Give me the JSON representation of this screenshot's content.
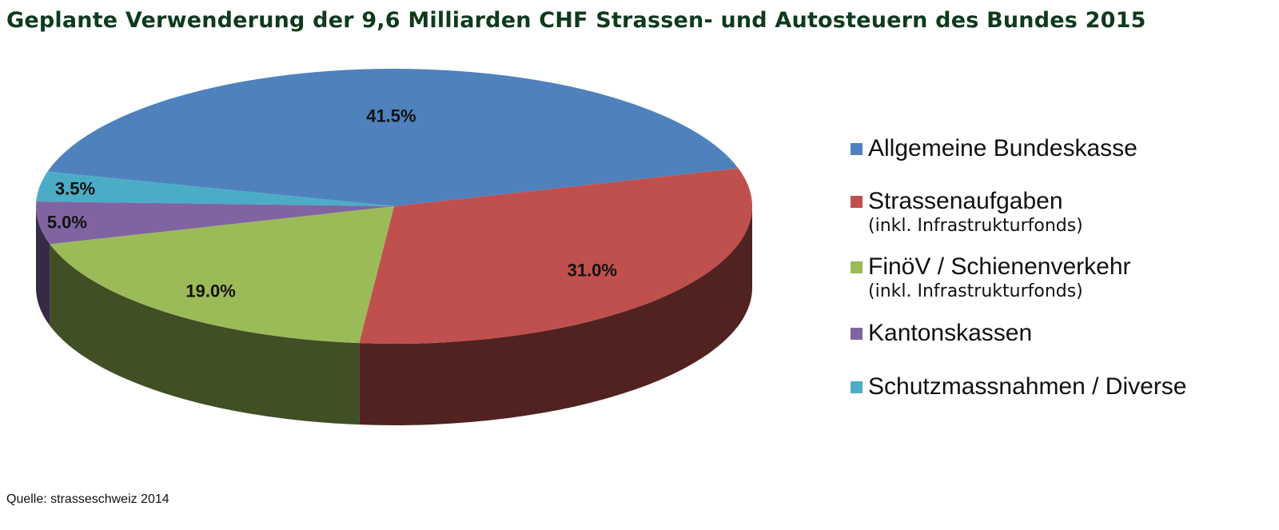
{
  "title": "Geplante Verwenderung der 9,6 Milliarden CHF Strassen- und Autosteuern des Bundes 2015",
  "source": "Quelle: strasseschweiz 2014",
  "chart_data": {
    "type": "pie",
    "three_d": true,
    "legend_placement": "right",
    "slices": [
      {
        "name": "Allgemeine Bundeskasse",
        "sub": "",
        "value": 41.5,
        "label": "41.5%",
        "color": "#4f81bd"
      },
      {
        "name": "Strassenaufgaben",
        "sub": "(inkl. Infrastrukturfonds)",
        "value": 31.0,
        "label": "31.0%",
        "color": "#c0504d"
      },
      {
        "name": "FinöV / Schienenverkehr",
        "sub": "(inkl. Infrastrukturfonds)",
        "value": 19.0,
        "label": "19.0%",
        "color": "#9bbb59"
      },
      {
        "name": "Kantonskassen",
        "sub": "",
        "value": 5.0,
        "label": "5.0%",
        "color": "#8064a2"
      },
      {
        "name": "Schutzmassnahmen / Diverse",
        "sub": "",
        "value": 3.5,
        "label": "3.5%",
        "color": "#4bacc6"
      }
    ]
  }
}
